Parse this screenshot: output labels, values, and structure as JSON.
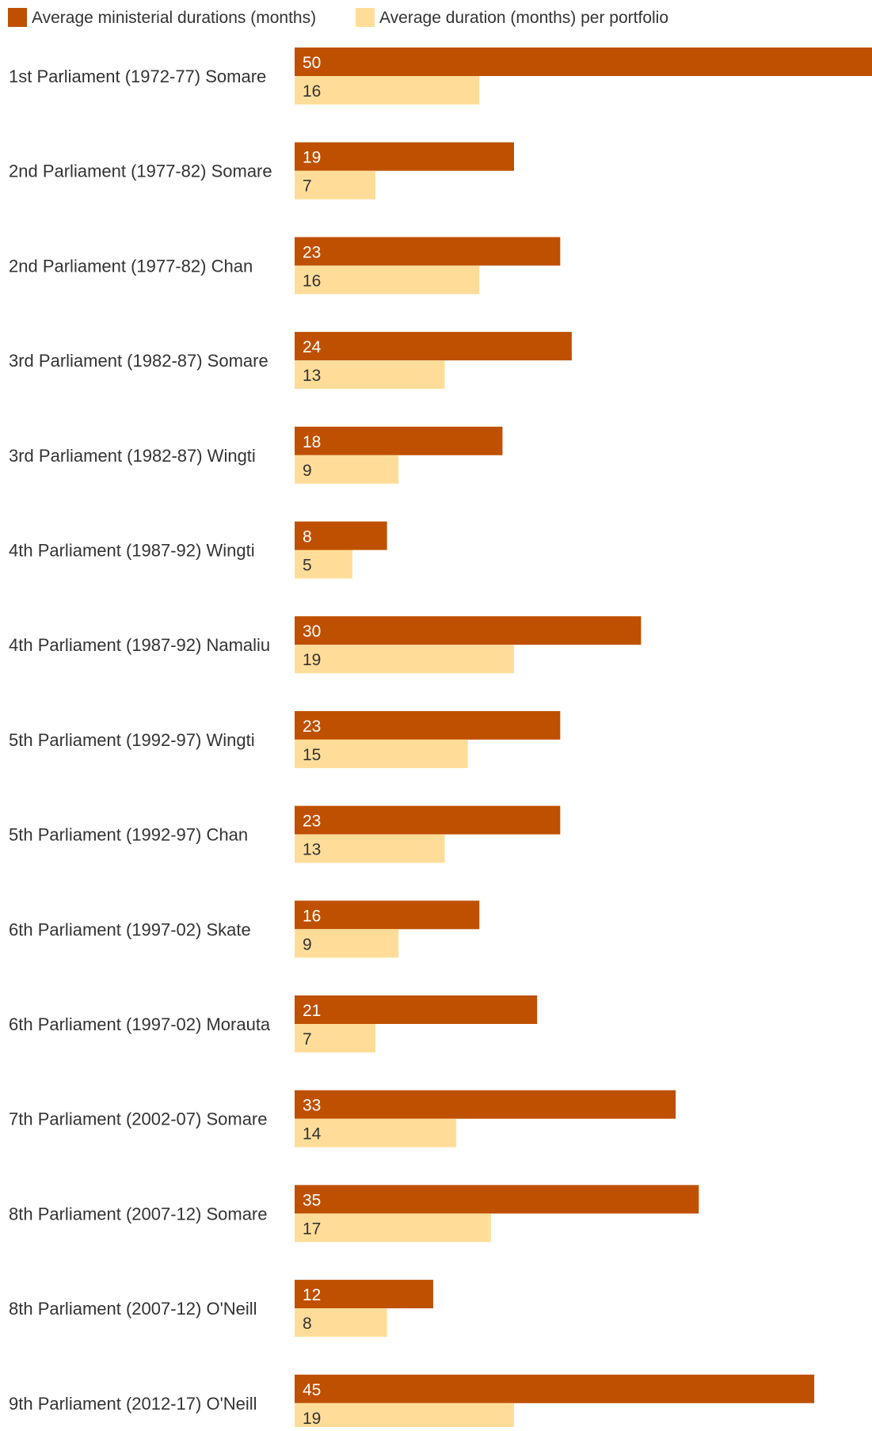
{
  "chart_data": {
    "type": "bar",
    "orientation": "horizontal",
    "legend_position": "top-left",
    "grid": false,
    "xlim": [
      0,
      50
    ],
    "categories": [
      "1st Parliament (1972-77) Somare",
      "2nd Parliament (1977-82) Somare",
      "2nd Parliament (1977-82) Chan",
      "3rd Parliament (1982-87) Somare",
      "3rd Parliament (1982-87) Wingti",
      "4th Parliament (1987-92) Wingti",
      "4th Parliament (1987-92) Namaliu",
      "5th Parliament (1992-97) Wingti",
      "5th Parliament (1992-97) Chan",
      "6th Parliament (1997-02) Skate",
      "6th Parliament (1997-02) Morauta",
      "7th Parliament (2002-07) Somare",
      "8th Parliament (2007-12) Somare",
      "8th Parliament (2007-12) O'Neill",
      "9th Parliament (2012-17) O'Neill"
    ],
    "series": [
      {
        "name": "Average ministerial durations (months)",
        "color": "#bf5000",
        "label_color": "#ffffff",
        "values": [
          50,
          19,
          23,
          24,
          18,
          8,
          30,
          23,
          23,
          16,
          21,
          33,
          35,
          12,
          45
        ]
      },
      {
        "name": "Average duration (months) per portfolio",
        "color": "#ffdd99",
        "label_color": "#333333",
        "values": [
          16,
          7,
          16,
          13,
          9,
          5,
          19,
          15,
          13,
          9,
          7,
          14,
          17,
          8,
          19
        ]
      }
    ]
  }
}
